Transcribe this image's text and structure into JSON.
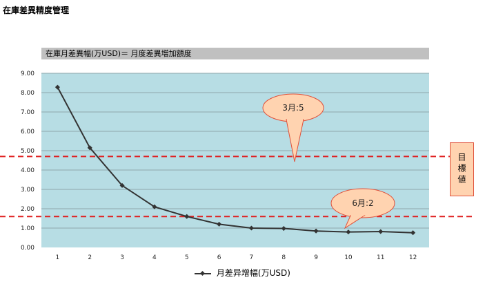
{
  "page": {
    "title": "在庫差異精度管理"
  },
  "target_label": "目標値",
  "colors": {
    "plot_bg": "#b7dde4",
    "banner_bg": "#c0c0c0",
    "line": "#333333",
    "target_line": "#e02020",
    "callout_fill": "#ffd3b0",
    "callout_stroke": "#e0503a"
  },
  "chart_data": {
    "type": "line",
    "title": "在庫月差異幅(万USD)＝ 月度差異増加額度",
    "xlabel": "",
    "ylabel": "",
    "x": [
      1,
      2,
      3,
      4,
      5,
      6,
      7,
      8,
      9,
      10,
      11,
      12
    ],
    "x_tick_labels": [
      "1",
      "2",
      "3",
      "4",
      "5",
      "6",
      "7",
      "8",
      "9",
      "10",
      "11",
      "12"
    ],
    "y_tick_labels": [
      "0.00",
      "1.00",
      "2.00",
      "3.00",
      "4.00",
      "5.00",
      "6.00",
      "7.00",
      "8.00",
      "9.00"
    ],
    "ylim": [
      0,
      9
    ],
    "grid": true,
    "legend_position": "bottom",
    "series": [
      {
        "name": "月差异增幅(万USD)",
        "values": [
          8.28,
          5.15,
          3.2,
          2.1,
          1.6,
          1.2,
          1.0,
          0.98,
          0.85,
          0.8,
          0.82,
          0.76
        ]
      }
    ],
    "target_lines": [
      4.7,
      1.6
    ],
    "annotations": [
      {
        "text": "3月:5"
      },
      {
        "text": "6月:2"
      }
    ]
  }
}
